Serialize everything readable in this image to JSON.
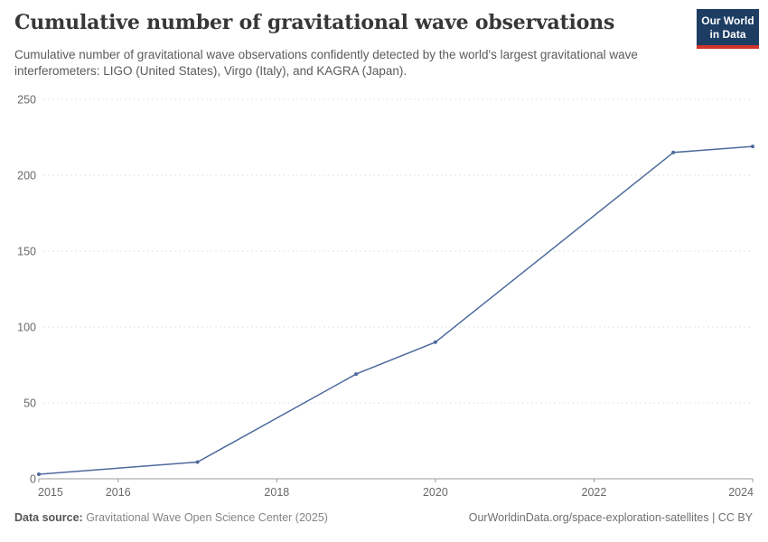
{
  "header": {
    "title": "Cumulative number of gravitational wave observations",
    "subtitle": "Cumulative number of gravitational wave observations confidently detected by the world's largest gravitational wave interferometers: LIGO (United States), Virgo (Italy), and KAGRA (Japan)."
  },
  "logo": {
    "line1": "Our World",
    "line2": "in Data",
    "bg_color": "#1d3d63",
    "accent_color": "#d0342c"
  },
  "footer": {
    "datasource_label": "Data source:",
    "datasource_value": " Gravitational Wave Open Science Center (2025)",
    "attribution": "OurWorldinData.org/space-exploration-satellites | CC BY"
  },
  "chart_data": {
    "type": "line",
    "title": "Cumulative number of gravitational wave observations",
    "series": [
      {
        "name": "Cumulative gravitational wave observations",
        "x": [
          2015,
          2017,
          2019,
          2020,
          2023,
          2024
        ],
        "y": [
          3,
          11,
          69,
          90,
          215,
          219
        ]
      }
    ],
    "xlim": [
      2015,
      2024
    ],
    "ylim": [
      0,
      250
    ],
    "xticks": [
      2015,
      2016,
      2018,
      2020,
      2022,
      2024
    ],
    "yticks": [
      0,
      50,
      100,
      150,
      200,
      250
    ],
    "grid": "horizontal-dashed",
    "legend": "none",
    "line_color": "#4C6A9C",
    "grid_color": "#e3e3e3",
    "axis_color": "#9a9a9a",
    "tick_label_color": "#696969"
  }
}
